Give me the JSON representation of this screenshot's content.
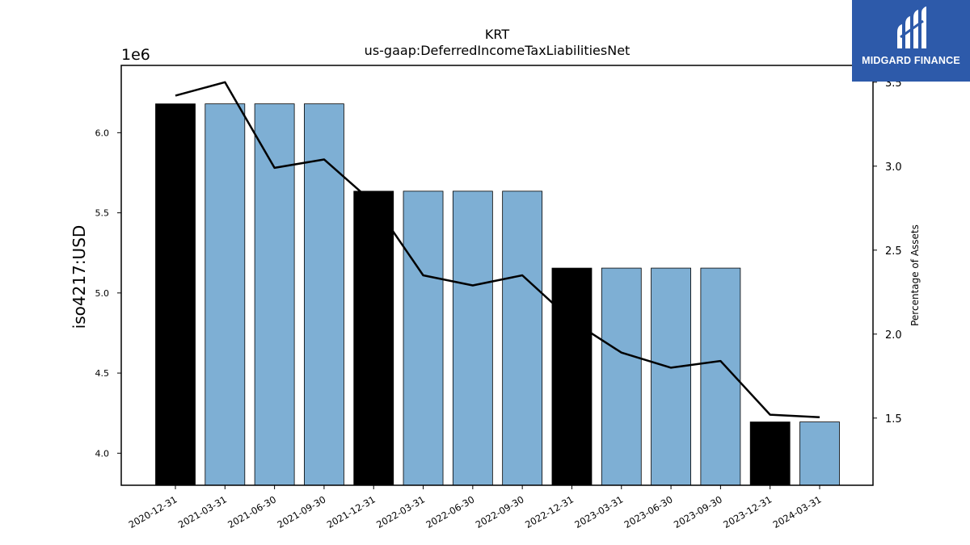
{
  "chart_data": {
    "type": "bar",
    "title": "KRT",
    "subtitle": "us-gaap:DeferredIncomeTaxLiabilitiesNet",
    "ylabel": "iso4217:USD",
    "y_offset_label": "1e6",
    "y2label": "Percentage of Assets",
    "categories": [
      "2020-12-31",
      "2021-03-31",
      "2021-06-30",
      "2021-09-30",
      "2021-12-31",
      "2022-03-31",
      "2022-06-30",
      "2022-09-30",
      "2022-12-31",
      "2023-03-31",
      "2023-06-30",
      "2023-09-30",
      "2023-12-31",
      "2024-03-31"
    ],
    "series": [
      {
        "type": "bar",
        "values": [
          6.18,
          6.18,
          6.18,
          6.18,
          5.635,
          5.635,
          5.635,
          5.635,
          5.155,
          5.155,
          5.155,
          5.155,
          4.195,
          4.195
        ],
        "bar_colors": [
          "#000000",
          "#7eafd4",
          "#7eafd4",
          "#7eafd4",
          "#000000",
          "#7eafd4",
          "#7eafd4",
          "#7eafd4",
          "#000000",
          "#7eafd4",
          "#7eafd4",
          "#7eafd4",
          "#000000",
          "#7eafd4"
        ]
      },
      {
        "type": "line",
        "axis": "right",
        "color": "#000000",
        "values": [
          3.42,
          3.5,
          2.99,
          3.04,
          2.78,
          2.35,
          2.29,
          2.35,
          2.08,
          1.89,
          1.8,
          1.84,
          1.52,
          1.505
        ]
      }
    ],
    "ylim": [
      3.8,
      6.42
    ],
    "yticks": [
      4.0,
      4.5,
      5.0,
      5.5,
      6.0
    ],
    "ytick_labels": [
      "4.0",
      "4.5",
      "5.0",
      "5.5",
      "6.0"
    ],
    "y2lim": [
      1.1,
      3.6
    ],
    "y2ticks": [
      1.5,
      2.0,
      2.5,
      3.0,
      3.5
    ],
    "y2tick_labels": [
      "1.5",
      "2.0",
      "2.5",
      "3.0",
      "3.5"
    ],
    "grid": false
  },
  "logo": {
    "text": "MIDGARD FINANCE",
    "background": "#2d5aaa"
  }
}
